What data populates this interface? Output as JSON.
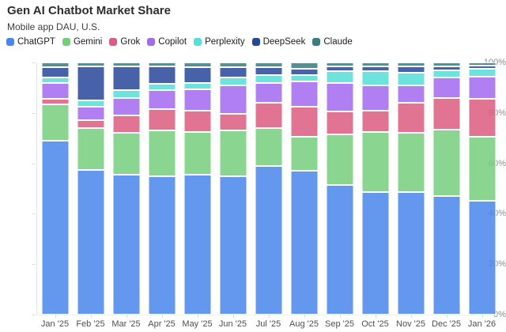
{
  "chart_data": {
    "type": "bar",
    "variant": "stacked-100-percent",
    "title": "Gen AI Chatbot Market Share",
    "subtitle": "Mobile app DAU, U.S.",
    "xlabel": "",
    "ylabel": "",
    "ylim": [
      0,
      100
    ],
    "grid": false,
    "legend_position": "top",
    "yticks": [
      "0%",
      "20%",
      "40%",
      "60%",
      "80%",
      "100%"
    ],
    "categories": [
      "Jan '25",
      "Feb '25",
      "Mar '25",
      "Apr '25",
      "May '25",
      "Jun '25",
      "Jul '25",
      "Aug '25",
      "Sep '25",
      "Oct '25",
      "Nov '25",
      "Dec '25",
      "Jan '26"
    ],
    "series": [
      {
        "name": "ChatGPT",
        "color": "#4987EC",
        "values": [
          69,
          57.5,
          55.5,
          55,
          55.5,
          55,
          59,
          57,
          51.5,
          48.5,
          48.5,
          47,
          45
        ]
      },
      {
        "name": "Gemini",
        "color": "#76CE7D",
        "values": [
          14.5,
          16.5,
          16.5,
          18,
          17,
          18,
          15,
          13.5,
          20,
          24,
          23.5,
          26.5,
          25.5
        ]
      },
      {
        "name": "Grok",
        "color": "#DB5C80",
        "values": [
          2,
          3,
          7,
          8.5,
          8.5,
          6.5,
          10,
          12,
          9,
          8.5,
          12,
          12.5,
          15
        ]
      },
      {
        "name": "Copilot",
        "color": "#A36BF2",
        "values": [
          6.5,
          5.5,
          7,
          7.5,
          8.5,
          11.5,
          8,
          10,
          11.5,
          10,
          7,
          8,
          9
        ]
      },
      {
        "name": "Perplexity",
        "color": "#55DFD9",
        "values": [
          2,
          2.5,
          3,
          2.5,
          2.5,
          3,
          3,
          2.5,
          4.5,
          5.5,
          5,
          3,
          3
        ]
      },
      {
        "name": "DeepSeek",
        "color": "#27479B",
        "values": [
          4,
          13.5,
          9.5,
          7,
          6,
          4,
          3,
          2.5,
          2,
          2,
          2.5,
          1.5,
          1.25
        ]
      },
      {
        "name": "Claude",
        "color": "#3B7C80",
        "values": [
          2,
          1.5,
          1.5,
          1.5,
          2,
          2,
          2,
          2.5,
          1.5,
          1.5,
          1.5,
          1.5,
          1.25
        ]
      }
    ]
  }
}
